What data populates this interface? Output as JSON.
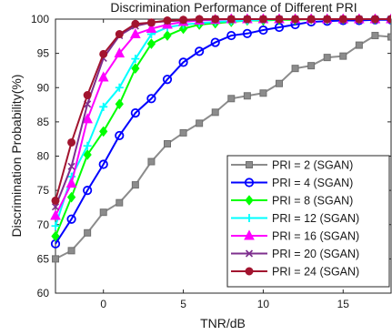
{
  "chart_data": {
    "type": "line",
    "title": "Discrimination Performance of Different PRI",
    "xlabel": "TNR/dB",
    "ylabel": "Discrimination Probability(%)",
    "xlim": [
      -3,
      18
    ],
    "ylim": [
      60,
      100
    ],
    "xticks": [
      0,
      5,
      10,
      15
    ],
    "yticks": [
      60,
      65,
      70,
      75,
      80,
      85,
      90,
      95,
      100
    ],
    "grid": false,
    "legend_position": "bottom-right",
    "x": [
      -3,
      -2,
      -1,
      0,
      1,
      2,
      3,
      4,
      5,
      6,
      7,
      8,
      9,
      10,
      11,
      12,
      13,
      14,
      15,
      16,
      17,
      18
    ],
    "series": [
      {
        "name": "PRI = 2 (SGAN)",
        "color": "#8c8c8c",
        "marker": "square",
        "values": [
          65.0,
          66.2,
          68.8,
          71.8,
          73.2,
          75.8,
          79.2,
          81.8,
          83.4,
          84.8,
          86.4,
          88.4,
          88.8,
          89.2,
          90.6,
          92.8,
          93.2,
          94.4,
          94.6,
          96.2,
          97.6,
          97.4
        ]
      },
      {
        "name": "PRI = 4 (SGAN)",
        "color": "#0000ff",
        "marker": "circle",
        "values": [
          67.2,
          70.8,
          75.0,
          78.8,
          83.0,
          86.3,
          88.4,
          91.2,
          93.7,
          95.3,
          96.6,
          97.6,
          97.9,
          98.4,
          98.8,
          99.2,
          99.6,
          99.7,
          99.8,
          99.8,
          99.9,
          99.9
        ]
      },
      {
        "name": "PRI = 8 (SGAN)",
        "color": "#00ff00",
        "marker": "diamond",
        "values": [
          68.3,
          74.0,
          80.2,
          83.6,
          87.6,
          92.8,
          96.4,
          97.6,
          98.6,
          99.2,
          99.4,
          99.6,
          99.8,
          99.8,
          99.9,
          99.9,
          100.0,
          100.0,
          100.0,
          100.0,
          100.0,
          100.0
        ]
      },
      {
        "name": "PRI = 12 (SGAN)",
        "color": "#00ffff",
        "marker": "plus",
        "values": [
          69.8,
          77.0,
          81.5,
          87.2,
          90.0,
          94.2,
          97.8,
          98.8,
          99.2,
          99.4,
          99.6,
          99.7,
          99.8,
          99.9,
          100.0,
          100.0,
          100.0,
          100.0,
          100.0,
          100.0,
          100.0,
          100.0
        ]
      },
      {
        "name": "PRI = 16 (SGAN)",
        "color": "#ff00ff",
        "marker": "triangle",
        "values": [
          71.3,
          76.0,
          85.4,
          91.5,
          95.0,
          97.8,
          98.6,
          99.2,
          99.6,
          99.8,
          99.9,
          100.0,
          100.0,
          100.0,
          100.0,
          100.0,
          100.0,
          100.0,
          100.0,
          100.0,
          100.0,
          100.0
        ]
      },
      {
        "name": "PRI = 20 (SGAN)",
        "color": "#7e2f8e",
        "marker": "x",
        "values": [
          72.6,
          78.5,
          87.6,
          94.3,
          97.6,
          99.0,
          99.5,
          99.7,
          99.8,
          99.9,
          100.0,
          100.0,
          100.0,
          100.0,
          100.0,
          100.0,
          100.0,
          100.0,
          100.0,
          100.0,
          100.0,
          100.0
        ]
      },
      {
        "name": "PRI = 24 (SGAN)",
        "color": "#a2142f",
        "marker": "dot",
        "values": [
          73.5,
          82.0,
          88.9,
          94.9,
          97.8,
          99.3,
          99.5,
          99.8,
          99.9,
          100.0,
          100.0,
          100.0,
          100.0,
          100.0,
          100.0,
          100.0,
          100.0,
          100.0,
          100.0,
          100.0,
          100.0,
          100.0
        ]
      }
    ]
  }
}
